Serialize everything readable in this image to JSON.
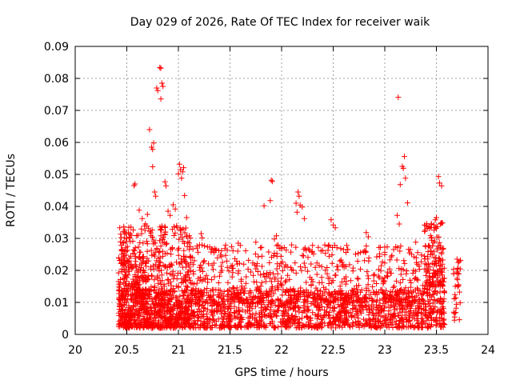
{
  "chart_data": {
    "type": "scatter",
    "title": "Day 029 of 2026, Rate Of TEC Index for receiver waik",
    "xlabel": "GPS time / hours",
    "ylabel": "ROTI / TECUs",
    "xlim": [
      20,
      24
    ],
    "ylim": [
      0,
      0.09
    ],
    "x_ticks": [
      "20",
      "20.5",
      "21",
      "21.5",
      "22",
      "22.5",
      "23",
      "23.5",
      "24"
    ],
    "y_ticks": [
      "0",
      "0.01",
      "0.02",
      "0.03",
      "0.04",
      "0.05",
      "0.06",
      "0.07",
      "0.08",
      "0.09"
    ],
    "grid": true,
    "marker": "plus",
    "series_color": "#ff0000",
    "points": [
      [
        20.82,
        0.0834
      ],
      [
        20.83,
        0.0832
      ],
      [
        20.79,
        0.077
      ],
      [
        20.8,
        0.0762
      ],
      [
        20.84,
        0.0785
      ],
      [
        20.85,
        0.0775
      ],
      [
        20.83,
        0.0736
      ],
      [
        20.72,
        0.064
      ],
      [
        20.74,
        0.0585
      ],
      [
        20.75,
        0.0578
      ],
      [
        20.76,
        0.0598
      ],
      [
        20.75,
        0.0524
      ],
      [
        23.13,
        0.0741
      ],
      [
        20.57,
        0.0465
      ],
      [
        20.58,
        0.047
      ],
      [
        20.77,
        0.0445
      ],
      [
        20.78,
        0.0432
      ],
      [
        20.87,
        0.0477
      ],
      [
        20.88,
        0.0464
      ],
      [
        21.0,
        0.0502
      ],
      [
        21.01,
        0.0532
      ],
      [
        21.02,
        0.0515
      ],
      [
        21.04,
        0.0508
      ],
      [
        21.05,
        0.0521
      ],
      [
        21.03,
        0.0488
      ],
      [
        21.06,
        0.0434
      ],
      [
        21.9,
        0.0482
      ],
      [
        21.91,
        0.0478
      ],
      [
        21.83,
        0.0402
      ],
      [
        21.89,
        0.0418
      ],
      [
        22.14,
        0.041
      ],
      [
        22.16,
        0.0445
      ],
      [
        22.17,
        0.0432
      ],
      [
        22.18,
        0.0404
      ],
      [
        22.2,
        0.0398
      ],
      [
        22.22,
        0.0362
      ],
      [
        22.15,
        0.0382
      ],
      [
        23.17,
        0.0525
      ],
      [
        23.18,
        0.0519
      ],
      [
        23.19,
        0.0556
      ],
      [
        23.2,
        0.0488
      ],
      [
        23.15,
        0.0468
      ],
      [
        23.22,
        0.0411
      ],
      [
        23.12,
        0.0372
      ],
      [
        23.14,
        0.0345
      ],
      [
        23.52,
        0.0493
      ],
      [
        23.53,
        0.0473
      ],
      [
        23.55,
        0.0464
      ],
      [
        23.5,
        0.0365
      ],
      [
        23.49,
        0.0358
      ],
      [
        23.54,
        0.0345
      ],
      [
        23.56,
        0.0348
      ],
      [
        20.62,
        0.0388
      ],
      [
        20.65,
        0.0362
      ],
      [
        20.7,
        0.0375
      ],
      [
        20.68,
        0.0345
      ],
      [
        20.71,
        0.0332
      ],
      [
        20.9,
        0.0385
      ],
      [
        20.92,
        0.0372
      ],
      [
        20.95,
        0.0405
      ],
      [
        20.97,
        0.0392
      ],
      [
        21.08,
        0.0365
      ],
      [
        22.48,
        0.0358
      ],
      [
        22.5,
        0.0342
      ],
      [
        22.52,
        0.0333
      ],
      [
        22.82,
        0.0318
      ],
      [
        22.84,
        0.0305
      ],
      [
        21.95,
        0.0308
      ],
      [
        21.93,
        0.0298
      ],
      [
        21.22,
        0.0315
      ],
      [
        21.23,
        0.0302
      ],
      [
        21.35,
        0.0268
      ],
      [
        21.36,
        0.0262
      ],
      [
        21.58,
        0.0285
      ],
      [
        21.6,
        0.0278
      ],
      [
        21.75,
        0.0288
      ],
      [
        22.3,
        0.0278
      ],
      [
        22.6,
        0.0265
      ],
      [
        22.95,
        0.0252
      ],
      [
        23.3,
        0.0288
      ],
      [
        23.7,
        0.0235
      ],
      [
        23.72,
        0.0228
      ]
    ],
    "cloud_regions": [
      {
        "x_range": [
          20.42,
          21.12
        ],
        "y_range": [
          0.002,
          0.034
        ],
        "count": 620
      },
      {
        "x_range": [
          20.42,
          23.58
        ],
        "y_range": [
          0.002,
          0.014
        ],
        "count": 1650
      },
      {
        "x_range": [
          21.12,
          23.58
        ],
        "y_range": [
          0.01,
          0.028
        ],
        "count": 620
      },
      {
        "x_range": [
          20.42,
          20.7
        ],
        "y_range": [
          0.012,
          0.025
        ],
        "count": 90
      },
      {
        "x_range": [
          23.38,
          23.58
        ],
        "y_range": [
          0.015,
          0.035
        ],
        "count": 110
      },
      {
        "x_range": [
          23.66,
          23.74
        ],
        "y_range": [
          0.004,
          0.024
        ],
        "count": 30
      }
    ]
  }
}
